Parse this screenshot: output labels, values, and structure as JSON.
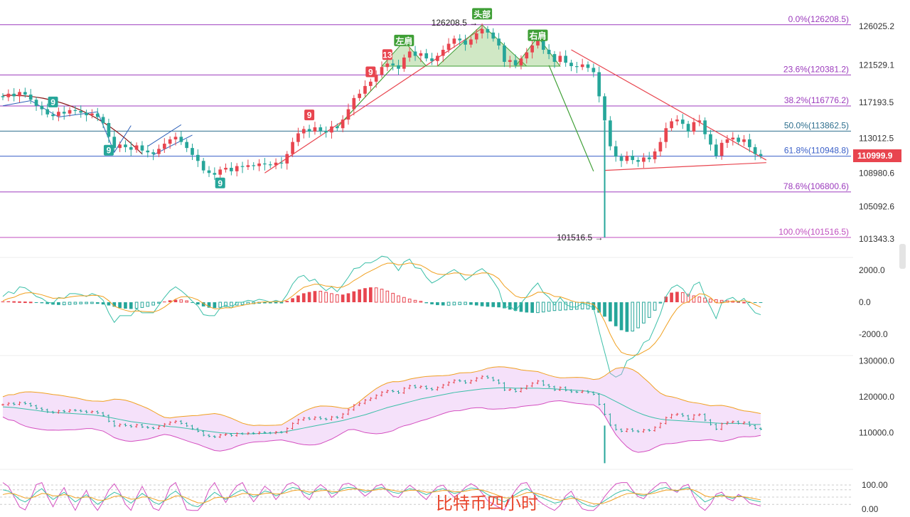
{
  "caption": "比特币四小时",
  "chart_data": {
    "type": "candlestick",
    "price_axis": {
      "ticks": [
        {
          "value": 126025.2,
          "label": "126025.2"
        },
        {
          "value": 121529.1,
          "label": "121529.1"
        },
        {
          "value": 117193.5,
          "label": "117193.5"
        },
        {
          "value": 113012.5,
          "label": "113012.5"
        },
        {
          "value": 108980.6,
          "label": "108980.6"
        },
        {
          "value": 105092.6,
          "label": "105092.6"
        },
        {
          "value": 101343.3,
          "label": "101343.3"
        }
      ],
      "current_price": {
        "value": 110999.9,
        "label": "110999.9",
        "color": "#e8454f"
      }
    },
    "fibonacci": [
      {
        "label": "0.0%(126208.5)",
        "price": 126208.5,
        "color": "#9c3bbd"
      },
      {
        "label": "23.6%(120381.2)",
        "price": 120381.2,
        "color": "#9c3bbd"
      },
      {
        "label": "38.2%(116776.2)",
        "price": 116776.2,
        "color": "#9c3bbd"
      },
      {
        "label": "50.0%(113862.5)",
        "price": 113862.5,
        "color": "#2e6f8e"
      },
      {
        "label": "61.8%(110948.8)",
        "price": 110948.8,
        "color": "#3a5fc8"
      },
      {
        "label": "78.6%(106800.6)",
        "price": 106800.6,
        "color": "#9c3bbd"
      },
      {
        "label": "100.0%(101516.5)",
        "price": 101516.5,
        "color": "#c04fbf"
      }
    ],
    "pattern_labels": [
      {
        "text": "左肩",
        "price": 124300
      },
      {
        "text": "头部",
        "price": 127400
      },
      {
        "text": "右肩",
        "price": 124900
      }
    ],
    "price_annotations": [
      {
        "text": "126208.5",
        "price": 126208.5
      },
      {
        "text": "101516.5",
        "price": 101516.5
      }
    ],
    "td_labels": [
      {
        "text": "9",
        "color": "#26a69a",
        "price": 117200
      },
      {
        "text": "9",
        "color": "#26a69a",
        "price": 111600
      },
      {
        "text": "9",
        "color": "#26a69a",
        "price": 107800
      },
      {
        "text": "9",
        "color": "#e8454f",
        "price": 115700
      },
      {
        "text": "9",
        "color": "#e8454f",
        "price": 120700
      },
      {
        "text": "13",
        "color": "#e8454f",
        "price": 122700
      }
    ],
    "macd": {
      "ticks": [
        {
          "value": 2000,
          "label": "2000.0"
        },
        {
          "value": 0,
          "label": "0.0"
        },
        {
          "value": -2000,
          "label": "-2000.0"
        }
      ]
    },
    "bollinger": {
      "ticks": [
        {
          "value": 130000,
          "label": "130000.0"
        },
        {
          "value": 120000,
          "label": "120000.0"
        },
        {
          "value": 110000,
          "label": "110000.0"
        }
      ]
    },
    "kdj": {
      "ticks": [
        {
          "value": 100,
          "label": "100.00"
        },
        {
          "value": 0,
          "label": "0.00"
        }
      ]
    },
    "series_close": [
      117800,
      118200,
      117900,
      118400,
      118100,
      117500,
      116800,
      116400,
      115800,
      115600,
      116100,
      115900,
      116300,
      116200,
      116000,
      115700,
      115900,
      115500,
      114800,
      113200,
      111900,
      112300,
      112000,
      111700,
      112200,
      111600,
      111400,
      111200,
      111800,
      112400,
      112900,
      113200,
      112600,
      111900,
      111100,
      110400,
      109300,
      109000,
      108800,
      109400,
      109600,
      109200,
      109800,
      109700,
      109900,
      109800,
      110100,
      110000,
      109900,
      110200,
      110100,
      111200,
      112600,
      113600,
      114100,
      113800,
      114300,
      113900,
      113700,
      114400,
      114200,
      115200,
      116400,
      117700,
      118200,
      119100,
      119600,
      120400,
      121300,
      121700,
      121500,
      121100,
      122400,
      123100,
      122600,
      122900,
      122300,
      122000,
      122600,
      123300,
      124000,
      124600,
      124400,
      123900,
      124500,
      125200,
      125700,
      125300,
      124600,
      123800,
      121900,
      122100,
      121500,
      122300,
      123000,
      123800,
      124400,
      123300,
      122800,
      121900,
      122600,
      121800,
      121400,
      121300,
      121600,
      121200,
      120700,
      117900,
      115100,
      112100,
      110900,
      110400,
      111000,
      110500,
      110300,
      110800,
      110600,
      111500,
      112600,
      114200,
      115000,
      115200,
      114700,
      113800,
      114900,
      115100,
      113500,
      112300,
      111000,
      112500,
      112900,
      113100,
      112600,
      112900,
      112000,
      111200,
      110999
    ],
    "macd_hist": [
      50,
      60,
      40,
      30,
      20,
      10,
      -20,
      -60,
      -110,
      -150,
      -170,
      -160,
      -140,
      -120,
      -100,
      -90,
      -80,
      -100,
      -140,
      -200,
      -280,
      -360,
      -400,
      -420,
      -380,
      -330,
      -260,
      -180,
      -60,
      40,
      120,
      160,
      150,
      90,
      -20,
      -140,
      -260,
      -340,
      -360,
      -320,
      -270,
      -220,
      -180,
      -150,
      -120,
      -90,
      -60,
      -40,
      -30,
      -20,
      -10,
      80,
      250,
      420,
      560,
      640,
      700,
      690,
      620,
      540,
      470,
      480,
      560,
      680,
      800,
      880,
      930,
      900,
      820,
      700,
      560,
      400,
      300,
      200,
      120,
      60,
      -60,
      -130,
      -180,
      -200,
      -190,
      -170,
      -150,
      -140,
      -160,
      -200,
      -250,
      -280,
      -300,
      -320,
      -380,
      -460,
      -540,
      -600,
      -640,
      -660,
      -650,
      -610,
      -560,
      -520,
      -500,
      -480,
      -460,
      -440,
      -420,
      -420,
      -480,
      -650,
      -900,
      -1200,
      -1500,
      -1750,
      -1850,
      -1800,
      -1600,
      -1300,
      -950,
      -500,
      -50,
      350,
      600,
      650,
      600,
      500,
      400,
      330,
      260,
      210,
      160,
      120,
      90,
      60,
      30,
      0,
      -20,
      -30,
      -40
    ],
    "bb_mid": [
      117200,
      117100,
      117000,
      116800,
      116600,
      116400,
      116200,
      116000,
      115800,
      115700,
      115600,
      115500,
      115400,
      115300,
      115200,
      115100,
      115000,
      114800,
      114600,
      114300,
      114000,
      113700,
      113400,
      113100,
      112900,
      112700,
      112500,
      112300,
      112100,
      111900,
      111700,
      111600,
      111400,
      111200,
      111000,
      110800,
      110600,
      110400,
      110200,
      110000,
      109900,
      109800,
      109800,
      109700,
      109700,
      109700,
      109800,
      109800,
      109900,
      110000,
      110100,
      110400,
      110700,
      111000,
      111300,
      111600,
      111900,
      112200,
      112500,
      112800,
      113100,
      113400,
      113800,
      114200,
      114600,
      115000,
      115500,
      116000,
      116500,
      117000,
      117400,
      117800,
      118200,
      118600,
      119000,
      119400,
      119700,
      120000,
      120300,
      120600,
      120900,
      121200,
      121400,
      121600,
      121800,
      122000,
      122200,
      122300,
      122400,
      122500,
      122500,
      122500,
      122400,
      122400,
      122400,
      122400,
      122400,
      122300,
      122300,
      122200,
      122100,
      122000,
      121900,
      121800,
      121700,
      121500,
      121300,
      120900,
      120300,
      119500,
      118700,
      117900,
      117100,
      116300,
      115600,
      115000,
      114500,
      114100,
      113800,
      113600,
      113500,
      113400,
      113300,
      113200,
      113100,
      113000,
      112900,
      112800,
      112700,
      112600,
      112600,
      112600,
      112600,
      112500,
      112400,
      112300,
      112300
    ],
    "kdj_k": [
      80,
      75,
      60,
      40,
      30,
      45,
      70,
      85,
      60,
      40,
      55,
      70,
      50,
      30,
      45,
      60,
      40,
      20,
      35,
      55,
      70,
      60,
      40,
      25,
      45,
      65,
      50,
      30,
      20,
      35,
      60,
      75,
      55,
      30,
      15,
      10,
      25,
      50,
      70,
      55,
      40,
      55,
      70,
      80,
      65,
      50,
      60,
      75,
      70,
      55,
      65,
      80,
      90,
      85,
      70,
      60,
      75,
      85,
      80,
      65,
      70,
      85,
      90,
      88,
      80,
      70,
      75,
      85,
      90,
      80,
      70,
      65,
      75,
      85,
      80,
      70,
      60,
      70,
      80,
      85,
      75,
      65,
      70,
      80,
      88,
      85,
      75,
      60,
      50,
      40,
      30,
      45,
      60,
      75,
      85,
      70,
      55,
      45,
      35,
      25,
      30,
      45,
      55,
      40,
      25,
      15,
      10,
      20,
      35,
      50,
      65,
      75,
      80,
      70,
      60,
      55,
      65,
      75,
      85,
      90,
      80,
      75,
      85,
      90,
      70,
      50,
      30,
      40,
      55,
      60,
      50,
      45,
      55,
      50,
      40,
      35,
      30
    ]
  }
}
